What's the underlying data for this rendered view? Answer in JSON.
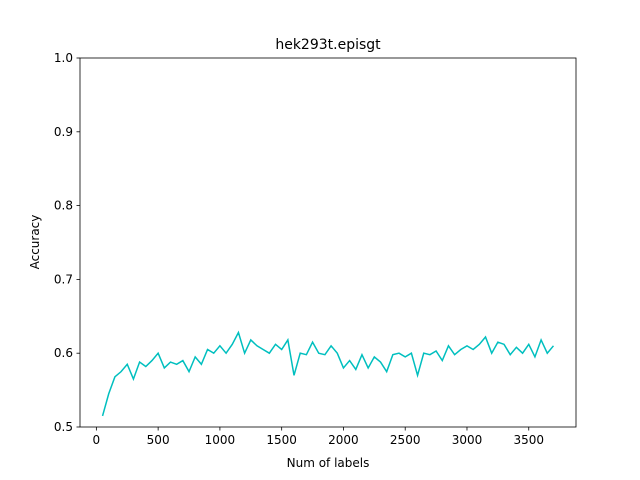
{
  "chart_data": {
    "type": "line",
    "title": "hek293t.episgt",
    "xlabel": "Num of labels",
    "ylabel": "Accuracy",
    "x": [
      50,
      100,
      150,
      200,
      250,
      300,
      350,
      400,
      450,
      500,
      550,
      600,
      650,
      700,
      750,
      800,
      850,
      900,
      950,
      1000,
      1050,
      1100,
      1150,
      1200,
      1250,
      1300,
      1350,
      1400,
      1450,
      1500,
      1550,
      1600,
      1650,
      1700,
      1750,
      1800,
      1850,
      1900,
      1950,
      2000,
      2050,
      2100,
      2150,
      2200,
      2250,
      2300,
      2350,
      2400,
      2450,
      2500,
      2550,
      2600,
      2650,
      2700,
      2750,
      2800,
      2850,
      2900,
      2950,
      3000,
      3050,
      3100,
      3150,
      3200,
      3250,
      3300,
      3350,
      3400,
      3450,
      3500,
      3550,
      3600,
      3650,
      3700
    ],
    "series": [
      {
        "color": "#00bfbf",
        "values": [
          0.515,
          0.545,
          0.568,
          0.575,
          0.585,
          0.565,
          0.588,
          0.582,
          0.59,
          0.6,
          0.58,
          0.588,
          0.585,
          0.59,
          0.575,
          0.595,
          0.585,
          0.605,
          0.6,
          0.61,
          0.6,
          0.612,
          0.628,
          0.6,
          0.618,
          0.61,
          0.605,
          0.6,
          0.612,
          0.605,
          0.618,
          0.57,
          0.6,
          0.598,
          0.615,
          0.6,
          0.598,
          0.61,
          0.6,
          0.58,
          0.59,
          0.578,
          0.598,
          0.58,
          0.595,
          0.588,
          0.575,
          0.598,
          0.6,
          0.595,
          0.6,
          0.57,
          0.6,
          0.598,
          0.603,
          0.59,
          0.61,
          0.598,
          0.605,
          0.61,
          0.605,
          0.612,
          0.622,
          0.6,
          0.615,
          0.612,
          0.598,
          0.608,
          0.6,
          0.612,
          0.595,
          0.618,
          0.6,
          0.61
        ]
      }
    ],
    "xlim": [
      -132.5,
      3882.5
    ],
    "xticks": [
      0,
      500,
      1000,
      1500,
      2000,
      2500,
      3000,
      3500
    ],
    "ylim": [
      0.5,
      1
    ],
    "yticks": [
      0.5,
      0.6,
      0.7,
      0.8,
      0.9,
      {
        "value": 1,
        "label": "1.0"
      }
    ]
  }
}
